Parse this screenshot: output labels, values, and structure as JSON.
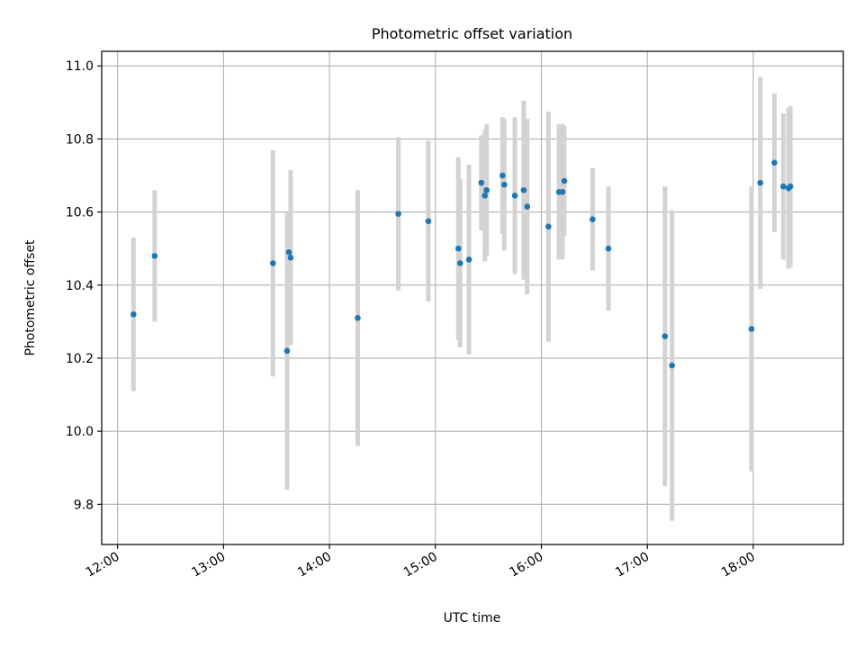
{
  "chart_data": {
    "type": "scatter",
    "title": "Photometric offset variation",
    "xlabel": "UTC time",
    "ylabel": "Photometric offset",
    "x_ticks": [
      "12:00",
      "13:00",
      "14:00",
      "15:00",
      "16:00",
      "17:00",
      "18:00"
    ],
    "y_ticks": [
      "9.8",
      "10.0",
      "10.2",
      "10.4",
      "10.6",
      "10.8",
      "11.0"
    ],
    "xlim": [
      "11:51",
      "18:51"
    ],
    "ylim": [
      9.69,
      11.04
    ],
    "grid": true,
    "colors": {
      "point": "#1f77b4",
      "errorbar": "#d3d3d3",
      "grid": "#b0b0b0",
      "frame": "#000000"
    },
    "series": [
      {
        "points": [
          {
            "x": "12:09",
            "y": 10.32,
            "err": 0.21
          },
          {
            "x": "12:21",
            "y": 10.48,
            "err": 0.18
          },
          {
            "x": "13:28",
            "y": 10.46,
            "err": 0.31
          },
          {
            "x": "13:36",
            "y": 10.22,
            "err": 0.38
          },
          {
            "x": "13:37",
            "y": 10.49,
            "err": 0.1
          },
          {
            "x": "13:38",
            "y": 10.475,
            "err": 0.24
          },
          {
            "x": "14:16",
            "y": 10.31,
            "err": 0.35
          },
          {
            "x": "14:39",
            "y": 10.595,
            "err": 0.21
          },
          {
            "x": "14:56",
            "y": 10.575,
            "err": 0.22
          },
          {
            "x": "15:13",
            "y": 10.5,
            "err": 0.25
          },
          {
            "x": "15:14",
            "y": 10.46,
            "err": 0.23
          },
          {
            "x": "15:19",
            "y": 10.47,
            "err": 0.26
          },
          {
            "x": "15:26",
            "y": 10.68,
            "err": 0.13
          },
          {
            "x": "15:28",
            "y": 10.645,
            "err": 0.18
          },
          {
            "x": "15:29",
            "y": 10.66,
            "err": 0.18
          },
          {
            "x": "15:38",
            "y": 10.7,
            "err": 0.16
          },
          {
            "x": "15:39",
            "y": 10.675,
            "err": 0.18
          },
          {
            "x": "15:45",
            "y": 10.645,
            "err": 0.215
          },
          {
            "x": "15:50",
            "y": 10.66,
            "err": 0.245
          },
          {
            "x": "15:52",
            "y": 10.615,
            "err": 0.24
          },
          {
            "x": "16:04",
            "y": 10.56,
            "err": 0.315
          },
          {
            "x": "16:10",
            "y": 10.655,
            "err": 0.185
          },
          {
            "x": "16:12",
            "y": 10.655,
            "err": 0.185
          },
          {
            "x": "16:13",
            "y": 10.685,
            "err": 0.15
          },
          {
            "x": "16:29",
            "y": 10.58,
            "err": 0.14
          },
          {
            "x": "16:38",
            "y": 10.5,
            "err": 0.17
          },
          {
            "x": "17:10",
            "y": 10.26,
            "err": 0.41
          },
          {
            "x": "17:14",
            "y": 10.18,
            "err": 0.425
          },
          {
            "x": "17:59",
            "y": 10.28,
            "err": 0.39
          },
          {
            "x": "18:04",
            "y": 10.68,
            "err": 0.29
          },
          {
            "x": "18:12",
            "y": 10.735,
            "err": 0.19
          },
          {
            "x": "18:17",
            "y": 10.67,
            "err": 0.2
          },
          {
            "x": "18:20",
            "y": 10.665,
            "err": 0.22
          },
          {
            "x": "18:21",
            "y": 10.67,
            "err": 0.22
          }
        ]
      }
    ]
  }
}
